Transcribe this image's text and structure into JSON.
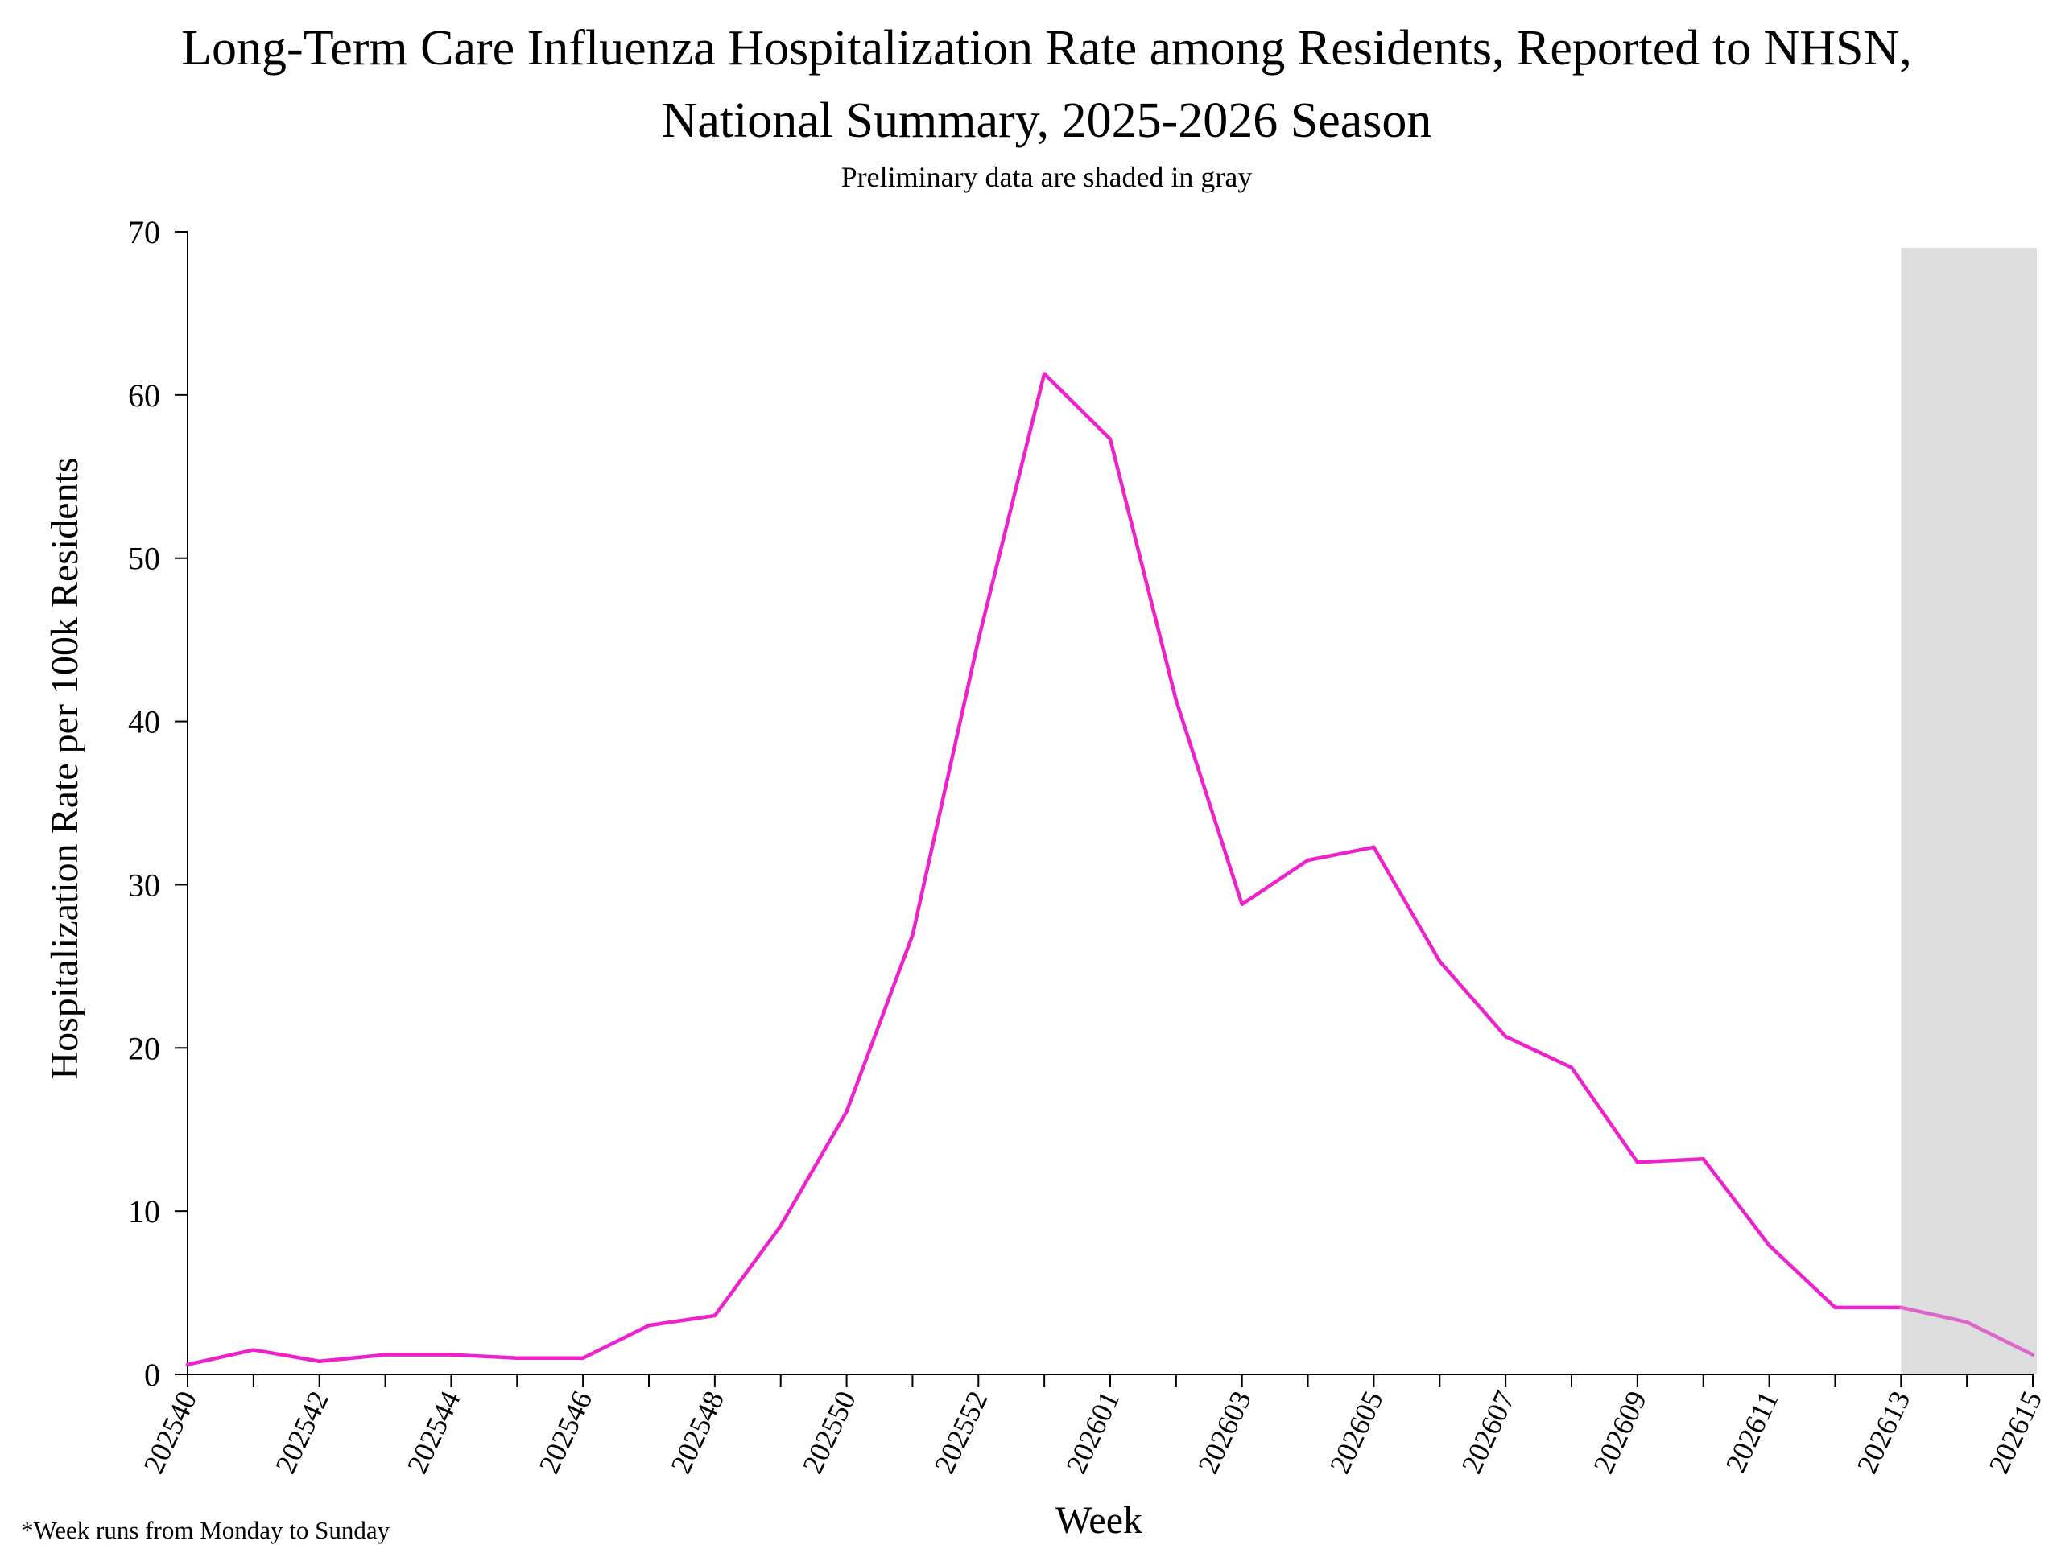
{
  "chart_data": {
    "type": "line",
    "title_line1": "Long-Term Care Influenza Hospitalization Rate among Residents, Reported to NHSN,",
    "title_line2": "National Summary, 2025-2026 Season",
    "subtitle": "Preliminary data are shaded in gray",
    "xlabel": "Week",
    "ylabel": "Hospitalization Rate per 100k Residents",
    "footnote": "*Week runs from Monday to Sunday",
    "ylim": [
      0,
      70
    ],
    "yticks": [
      0,
      10,
      20,
      30,
      40,
      50,
      60,
      70
    ],
    "x": [
      "202540",
      "202541",
      "202542",
      "202543",
      "202544",
      "202545",
      "202546",
      "202547",
      "202548",
      "202549",
      "202550",
      "202551",
      "202552",
      "202553",
      "202601",
      "202602",
      "202603",
      "202604",
      "202605",
      "202606",
      "202607",
      "202608",
      "202609",
      "202610",
      "202611",
      "202612",
      "202613",
      "202614",
      "202615"
    ],
    "xtick_labels": [
      "202540",
      "202542",
      "202544",
      "202546",
      "202548",
      "202550",
      "202552",
      "202601",
      "202603",
      "202605",
      "202607",
      "202609",
      "202611",
      "202613",
      "202615"
    ],
    "series": [
      {
        "values": [
          0.6,
          1.5,
          0.8,
          1.2,
          1.2,
          1.0,
          1.0,
          3.0,
          3.6,
          9.1,
          16.1,
          26.9,
          45.0,
          61.3,
          57.3,
          41.3,
          28.8,
          31.5,
          32.3,
          25.3,
          20.7,
          18.8,
          13.0,
          13.2,
          7.9,
          4.1,
          4.1,
          3.2,
          1.2
        ],
        "color": "#ee22cc",
        "preliminary_color": "#dd66cc"
      }
    ],
    "preliminary_from": "202613",
    "preliminary_to": "202615",
    "shade_color": "#dddddd",
    "grid": false,
    "legend": "none"
  }
}
